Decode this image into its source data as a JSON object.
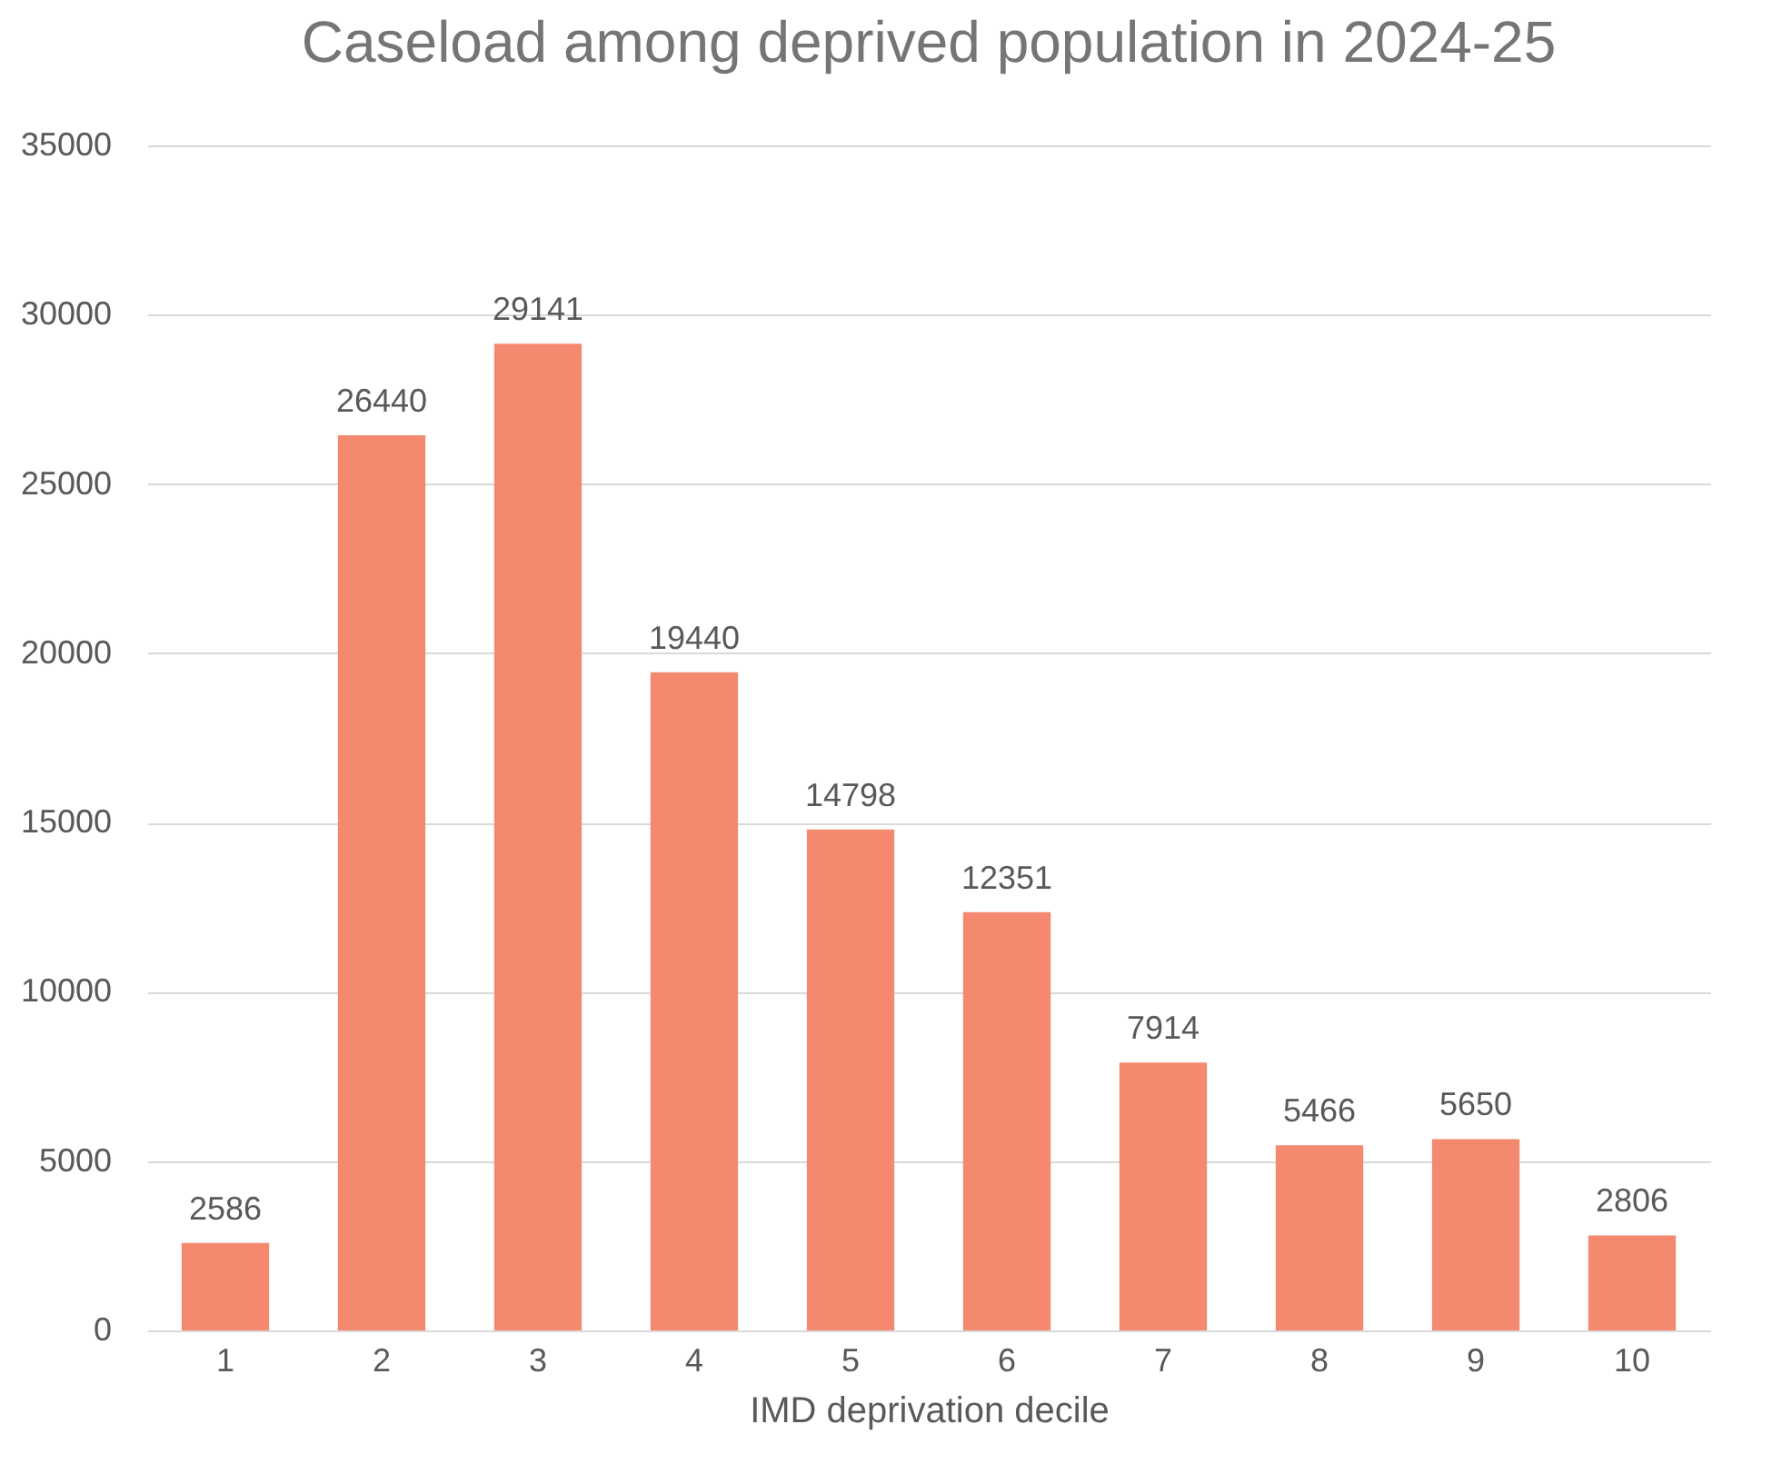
{
  "chart_data": {
    "type": "bar",
    "title": "Caseload among deprived population in 2024-25",
    "xlabel": "IMD deprivation decile",
    "categories": [
      "1",
      "2",
      "3",
      "4",
      "5",
      "6",
      "7",
      "8",
      "9",
      "10"
    ],
    "values": [
      2586,
      26440,
      29141,
      19440,
      14798,
      12351,
      7914,
      5466,
      5650,
      2806
    ],
    "color": "#f4896f",
    "ylim": [
      0,
      35000
    ],
    "yticks": [
      0,
      5000,
      10000,
      15000,
      20000,
      25000,
      30000,
      35000
    ],
    "grid": "y",
    "data_labels": true
  }
}
